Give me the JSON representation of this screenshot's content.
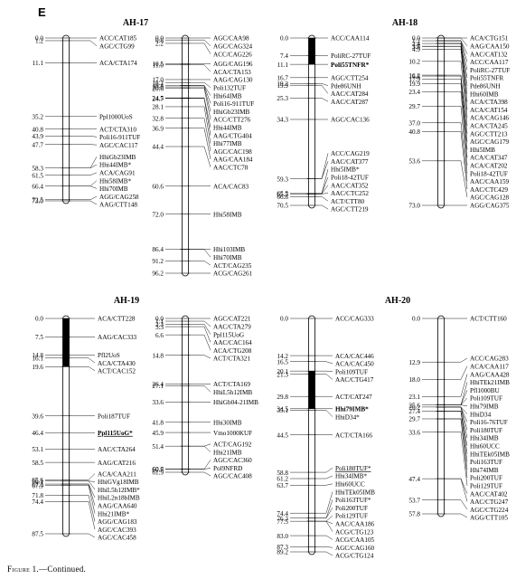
{
  "panel_letter": "E",
  "caption": {
    "label": "Figure 1.",
    "suffix": "—Continued."
  },
  "groups": [
    {
      "title": "AH-17",
      "chromosomes": [
        {
          "markers": [
            {
              "pos": "0.0",
              "name": "ACC/CAT185"
            },
            {
              "pos": "1.2",
              "name": "AGC/CTG99"
            },
            {
              "pos": "11.1",
              "name": "ACA/CTA174"
            },
            {
              "pos": "35.2",
              "name": "Ppl1000UoS"
            },
            {
              "pos": "40.8",
              "name": "ACT/CTA310"
            },
            {
              "pos": "43.9",
              "name": "Poli16-911TUF"
            },
            {
              "pos": "47.7",
              "name": "AGC/CAC117"
            },
            {
              "pos": "58.3",
              "name": "HhiGb23IMB"
            },
            {
              "pos": "",
              "name": "Hhi44IMB*"
            },
            {
              "pos": "61.5",
              "name": "ACA/CAG91"
            },
            {
              "pos": "66.4",
              "name": "Hhi58IMB*"
            },
            {
              "pos": "",
              "name": "Hhi70IMB"
            },
            {
              "pos": "72.5",
              "name": "AGG/CAG258"
            },
            {
              "pos": "73.0",
              "name": "AAG/CTT148"
            }
          ]
        },
        {
          "markers": [
            {
              "pos": "0.0",
              "name": "AGC/CAA98"
            },
            {
              "pos": "0.8",
              "name": "AGC/CAG324"
            },
            {
              "pos": "2.2",
              "name": "ACC/CAG226"
            },
            {
              "pos": "10.5",
              "name": "AGG/CAG196"
            },
            {
              "pos": "11.0",
              "name": "ACA/CTA153"
            },
            {
              "pos": "17.0",
              "name": "AAG/CAG130"
            },
            {
              "pos": "18.2",
              "name": "Poli132TUF"
            },
            {
              "pos": "19.4",
              "name": "Hhi64IMB"
            },
            {
              "pos": "",
              "name": "Poli16-911TUF"
            },
            {
              "pos": "20.0",
              "name": "HhiGb23IMB"
            },
            {
              "pos": "20.6",
              "name": "ACC/CTT276"
            },
            {
              "pos": "24.5",
              "name": "Hhi44IMB"
            },
            {
              "pos": "24.7",
              "name": "AAG/CTG404"
            },
            {
              "pos": "28.1",
              "name": "Hhi77IMB"
            },
            {
              "pos": "32.8",
              "name": "AGC/CAC198"
            },
            {
              "pos": "36.9",
              "name": "AAG/CAA184"
            },
            {
              "pos": "44.4",
              "name": "AAC/CTC78"
            },
            {
              "pos": "60.6",
              "name": "ACA/CAC83"
            },
            {
              "pos": "72.0",
              "name": "Hhi58IMB"
            },
            {
              "pos": "86.4",
              "name": "Hhi103IMB"
            },
            {
              "pos": "",
              "name": "Hhi70IMB"
            },
            {
              "pos": "91.2",
              "name": "ACT/CAG235"
            },
            {
              "pos": "96.2",
              "name": "ACG/CAG261"
            }
          ]
        }
      ]
    },
    {
      "title": "AH-18",
      "chromosomes": [
        {
          "markers": [
            {
              "pos": "0.0",
              "name": "ACC/CAA114"
            },
            {
              "pos": "7.4",
              "name": "PoliRC-27TUF"
            },
            {
              "pos": "11.1",
              "name": "Poli55TNFR*",
              "bold": true
            },
            {
              "pos": "16.7",
              "name": "AGC/CTT254"
            },
            {
              "pos": "19.2",
              "name": "Pde86UNH"
            },
            {
              "pos": "19.9",
              "name": "AAC/CAT284"
            },
            {
              "pos": "25.3",
              "name": "AAC/CAT287"
            },
            {
              "pos": "34.3",
              "name": "AGC/CAC136"
            },
            {
              "pos": "59.3",
              "name": "ACC/CAG219"
            },
            {
              "pos": "",
              "name": "AAC/CAT377"
            },
            {
              "pos": "65.5",
              "name": "Hhi5IMB*"
            },
            {
              "pos": "",
              "name": "Poli18-42TUF"
            },
            {
              "pos": "65.7",
              "name": "AAC/CAT352"
            },
            {
              "pos": "",
              "name": "AAC/CTC252"
            },
            {
              "pos": "66.8",
              "name": "ACT/CTT80"
            },
            {
              "pos": "70.5",
              "name": "AGC/CTT219"
            }
          ]
        },
        {
          "markers": [
            {
              "pos": "0.0",
              "name": "ACA/CTG151"
            },
            {
              "pos": "",
              "name": "AAG/CAA150"
            },
            {
              "pos": "1.2",
              "name": "AAC/CAT132"
            },
            {
              "pos": "",
              "name": "ACC/CAA117"
            },
            {
              "pos": "",
              "name": "PoliRC-27TUF"
            },
            {
              "pos": "2.4",
              "name": "Poli55TNFR"
            },
            {
              "pos": "",
              "name": "Pde86UNH"
            },
            {
              "pos": "",
              "name": "Hhi60IMB"
            },
            {
              "pos": "3.6",
              "name": "ACA/CTA398"
            },
            {
              "pos": "3.7",
              "name": "ACA/CAT154"
            },
            {
              "pos": "4.9",
              "name": "ACA/CAG146"
            },
            {
              "pos": "10.2",
              "name": "ACA/CTA245"
            },
            {
              "pos": "16.2",
              "name": "AGC/CTT213"
            },
            {
              "pos": "16.6",
              "name": "AGC/CAG179"
            },
            {
              "pos": "17.9",
              "name": "Hhi5IMB"
            },
            {
              "pos": "19.9",
              "name": "ACA/CAT347"
            },
            {
              "pos": "23.4",
              "name": "ACA/CAT202"
            },
            {
              "pos": "29.7",
              "name": "Poli18-42TUF"
            },
            {
              "pos": "37.0",
              "name": "AAC/CAA159"
            },
            {
              "pos": "40.8",
              "name": "AAC/CTC429"
            },
            {
              "pos": "53.6",
              "name": "AGC/CAG128"
            },
            {
              "pos": "73.0",
              "name": "AGG/CAG375"
            }
          ]
        }
      ]
    },
    {
      "title": "AH-19",
      "chromosomes": [
        {
          "markers": [
            {
              "pos": "0.0",
              "name": "ACA/CTT228"
            },
            {
              "pos": "7.5",
              "name": "AAG/CAC333"
            },
            {
              "pos": "14.8",
              "name": "Pfl2UoS"
            },
            {
              "pos": "16.1",
              "name": "ACA/CTA430"
            },
            {
              "pos": "19.6",
              "name": "ACT/CAC152"
            },
            {
              "pos": "39.6",
              "name": "Poli187TUF"
            },
            {
              "pos": "46.4",
              "name": "Ppl115UoG*",
              "bold": true,
              "underline": true
            },
            {
              "pos": "53.1",
              "name": "AAC/CTA264"
            },
            {
              "pos": "58.5",
              "name": "AAG/CAT216"
            },
            {
              "pos": "65.6",
              "name": "ACA/CAA211"
            },
            {
              "pos": "66.1",
              "name": "HhiGVg18IMB"
            },
            {
              "pos": "",
              "name": "HhiL5h12IMB*"
            },
            {
              "pos": "67.3",
              "name": "HhiL2n18bIMB"
            },
            {
              "pos": "",
              "name": "AAG/CAA640"
            },
            {
              "pos": "67.9",
              "name": "Hhi21IMB*"
            },
            {
              "pos": "71.8",
              "name": "AGG/CAG183"
            },
            {
              "pos": "74.4",
              "name": "AGC/CAC393"
            },
            {
              "pos": "87.5",
              "name": "AGC/CAC458"
            }
          ]
        },
        {
          "markers": [
            {
              "pos": "0.0",
              "name": "AGC/CAT221"
            },
            {
              "pos": "1.1",
              "name": "AAC/CTA279"
            },
            {
              "pos": "2.3",
              "name": "Ppl115UoG"
            },
            {
              "pos": "3.3",
              "name": "AAC/CAC164"
            },
            {
              "pos": "6.6",
              "name": "ACA/CTG208"
            },
            {
              "pos": "14.8",
              "name": "ACT/CTA321"
            },
            {
              "pos": "26.4",
              "name": "ACT/CTA169"
            },
            {
              "pos": "27.1",
              "name": "HhiL5h12IMB"
            },
            {
              "pos": "33.6",
              "name": "HhiGb04-21IMB"
            },
            {
              "pos": "41.8",
              "name": "Hhi30IMB"
            },
            {
              "pos": "45.9",
              "name": "Vmo1000KUF"
            },
            {
              "pos": "51.4",
              "name": "ACT/CAG192"
            },
            {
              "pos": "",
              "name": "Hhi21IMB"
            },
            {
              "pos": "60.6",
              "name": "AGC/CAC360"
            },
            {
              "pos": "60.7",
              "name": "Pol9NFRD"
            },
            {
              "pos": "61.9",
              "name": "AGC/CAC408"
            }
          ]
        }
      ]
    },
    {
      "title": "AH-20",
      "chromosomes": [
        {
          "markers": [
            {
              "pos": "0.0",
              "name": "ACC/CAG333"
            },
            {
              "pos": "14.2",
              "name": "ACA/CAC446"
            },
            {
              "pos": "16.5",
              "name": "ACA/CAC450"
            },
            {
              "pos": "20.1",
              "name": "Poli109TUF"
            },
            {
              "pos": "21.3",
              "name": "AAC/CTG417"
            },
            {
              "pos": "29.8",
              "name": "ACT/CAT247"
            },
            {
              "pos": "34.5",
              "name": "Hhi79IMB*",
              "bold": true
            },
            {
              "pos": "35.1",
              "name": "HhiD34*"
            },
            {
              "pos": "44.5",
              "name": "ACT/CTA166"
            },
            {
              "pos": "58.8",
              "name": "Poli180TUF*",
              "underline": true
            },
            {
              "pos": "61.2",
              "name": "Hhi34IMB*"
            },
            {
              "pos": "63.7",
              "name": "Hhi60UCC"
            },
            {
              "pos": "74.4",
              "name": "HhiTEk05IMB"
            },
            {
              "pos": "76.3",
              "name": "Poli163TUF*"
            },
            {
              "pos": "",
              "name": "Poli200TUF"
            },
            {
              "pos": "77.5",
              "name": "Poli129TUF"
            },
            {
              "pos": "",
              "name": "AAC/CAA186"
            },
            {
              "pos": "",
              "name": "ACG/CTG123"
            },
            {
              "pos": "83.0",
              "name": "ACG/CAA105"
            },
            {
              "pos": "87.3",
              "name": "AGC/CAG160"
            },
            {
              "pos": "89.2",
              "name": "ACG/CTG124"
            }
          ]
        },
        {
          "markers": [
            {
              "pos": "0.0",
              "name": "ACT/CTT160"
            },
            {
              "pos": "12.9",
              "name": "ACC/CAG283"
            },
            {
              "pos": "18.0",
              "name": "ACA/CAA117"
            },
            {
              "pos": "23.1",
              "name": "AAG/CAA428"
            },
            {
              "pos": "25.6",
              "name": "HhiTEk21IMB"
            },
            {
              "pos": "",
              "name": "Pfl1000BU"
            },
            {
              "pos": "",
              "name": "Poli109TUF"
            },
            {
              "pos": "",
              "name": "Hhi79IMB"
            },
            {
              "pos": "26.2",
              "name": "HhiD34"
            },
            {
              "pos": "",
              "name": "Poli16-76TUF"
            },
            {
              "pos": "",
              "name": "Poli180TUF"
            },
            {
              "pos": "",
              "name": "Hhi34IMB"
            },
            {
              "pos": "27.4",
              "name": "Hhi60UCC"
            },
            {
              "pos": "",
              "name": "HhiTEk05IMB"
            },
            {
              "pos": "",
              "name": "Poli163TUF"
            },
            {
              "pos": "29.7",
              "name": "Hhi74IMB"
            },
            {
              "pos": "",
              "name": "Poli200TUF"
            },
            {
              "pos": "33.6",
              "name": "Poli129TUF"
            },
            {
              "pos": "47.4",
              "name": "AAC/CAT402"
            },
            {
              "pos": "",
              "name": "AAC/CTG247"
            },
            {
              "pos": "53.7",
              "name": "AGC/CTG224"
            },
            {
              "pos": "57.8",
              "name": "AGG/CTT105"
            }
          ]
        }
      ]
    }
  ]
}
